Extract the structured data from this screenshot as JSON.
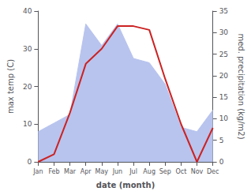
{
  "chart_data": {
    "type": "line",
    "categories": [
      "Jan",
      "Feb",
      "Mar",
      "Apr",
      "May",
      "Jun",
      "Jul",
      "Aug",
      "Sep",
      "Oct",
      "Nov",
      "Dec"
    ],
    "series": [
      {
        "type": "area",
        "color": "#b8c4ee",
        "axis": "y2",
        "values": [
          7,
          9,
          11,
          32,
          27,
          32,
          24,
          23,
          18,
          8,
          7,
          12
        ]
      },
      {
        "type": "line",
        "color": "#cc2222",
        "values": [
          0,
          2,
          13,
          26,
          30,
          36,
          36,
          35,
          22,
          10,
          0,
          9
        ]
      }
    ],
    "xlabel": "date (month)",
    "ylabel": "max temp (C)",
    "y2label": "med. precipitation (kg/m2)",
    "ylim": [
      0,
      40
    ],
    "yticks": [
      0,
      10,
      20,
      30,
      40
    ],
    "y2lim": [
      0,
      35
    ],
    "y2ticks": [
      0,
      5,
      10,
      15,
      20,
      25,
      30,
      35
    ],
    "grid": false
  }
}
